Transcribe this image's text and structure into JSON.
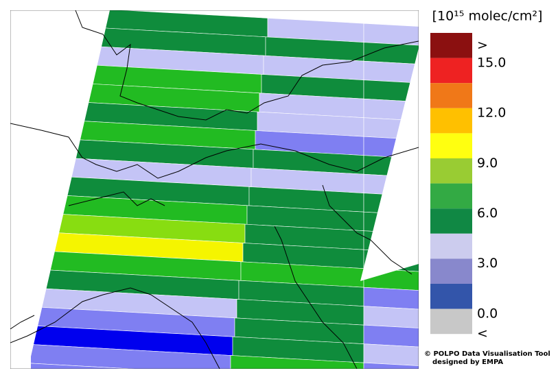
{
  "legend": {
    "title": "[10¹⁵ molec/cm²]",
    "labels": [
      ">",
      "15.0",
      "12.0",
      "9.0",
      "6.0",
      "3.0",
      "0.0",
      "<"
    ]
  },
  "credits": [
    "© POLPO Data Visualisation Tool",
    "designed by EMPA"
  ]
}
